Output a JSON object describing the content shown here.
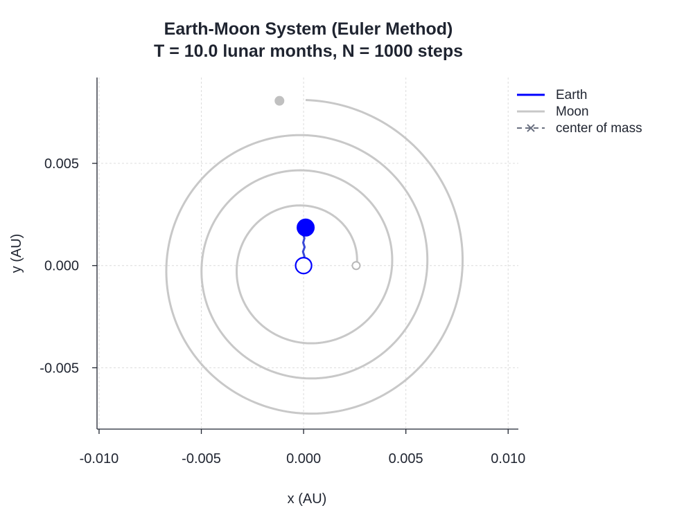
{
  "chart_data": {
    "type": "line",
    "title_line1": "Earth-Moon System (Euler Method)",
    "title_line2": "T = 10.0 lunar months, N = 1000 steps",
    "xlabel": "x (AU)",
    "ylabel": "y (AU)",
    "xlim": [
      -0.0101,
      0.0105
    ],
    "ylim": [
      -0.008,
      0.0092
    ],
    "xticks": [
      -0.01,
      -0.005,
      0.0,
      0.005,
      0.01
    ],
    "xtick_labels": [
      "-0.010",
      "-0.005",
      "0.000",
      "0.005",
      "0.010"
    ],
    "yticks": [
      -0.005,
      0.0,
      0.005
    ],
    "ytick_labels": [
      "-0.005",
      "0.000",
      "0.005"
    ],
    "grid": true,
    "legend_position": "top-right",
    "series": [
      {
        "name": "Earth",
        "color": "#0000ff",
        "start": [
          0.0,
          0.0
        ],
        "end": [
          0.0001,
          0.00186
        ],
        "points": [
          [
            0.0,
            0.0
          ],
          [
            -5e-05,
            0.00022
          ],
          [
            4e-05,
            0.00045
          ],
          [
            -3e-05,
            0.00068
          ],
          [
            5e-05,
            0.0009
          ],
          [
            -2e-05,
            0.00112
          ],
          [
            4e-05,
            0.00134
          ],
          [
            -2e-05,
            0.00152
          ],
          [
            6e-05,
            0.0017
          ],
          [
            0.0001,
            0.00186
          ]
        ]
      },
      {
        "name": "Moon",
        "color": "#c8c8c8",
        "start": [
          0.00257,
          0.0
        ],
        "end": [
          -0.00118,
          0.00806
        ],
        "spiral": {
          "center": [
            0.0001,
            0.0
          ],
          "r_start": 0.0025,
          "r_end": 0.0081,
          "turns": 3.25
        }
      },
      {
        "name": "center of mass",
        "color": "#6a7080",
        "marker": "x",
        "points": []
      }
    ]
  }
}
